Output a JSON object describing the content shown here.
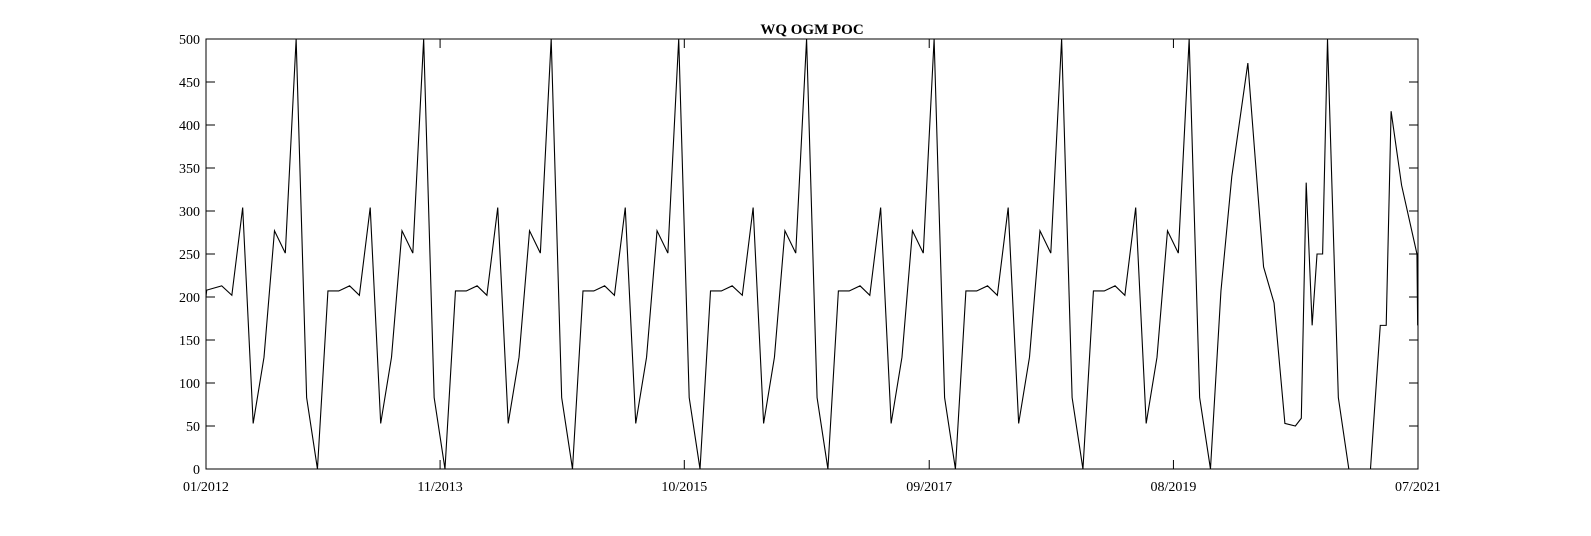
{
  "chart_data": {
    "type": "line",
    "title": "WQ OGM POC",
    "xlabel": "",
    "ylabel": "",
    "xlim": [
      "2012-01-01",
      "2021-07-01"
    ],
    "ylim": [
      0,
      500
    ],
    "yticks": [
      0,
      50,
      100,
      150,
      200,
      250,
      300,
      350,
      400,
      450,
      500
    ],
    "xticks": [
      "2012-01-01",
      "2013-11-01",
      "2015-10-01",
      "2017-09-01",
      "2019-08-01",
      "2021-07-01"
    ],
    "xtick_labels": [
      "01/2012",
      "11/2013",
      "10/2015",
      "09/2017",
      "08/2019",
      "07/2021"
    ],
    "grid": false,
    "series": [
      {
        "color": "#000000",
        "x": [
          "2012-01-01",
          "2012-01-03",
          "2012-02-15",
          "2012-03-15",
          "2012-04-15",
          "2012-05-15",
          "2012-06-15",
          "2012-07-15",
          "2012-08-15",
          "2012-09-15",
          "2012-10-15",
          "2012-11-15",
          "2012-12-15",
          "2013-01-15",
          "2013-02-15",
          "2013-03-15",
          "2013-04-15",
          "2013-05-15",
          "2013-06-15",
          "2013-07-15",
          "2013-08-15",
          "2013-09-15",
          "2013-10-15",
          "2013-11-15",
          "2013-12-15",
          "2014-01-15",
          "2014-02-15",
          "2014-03-15",
          "2014-04-15",
          "2014-05-15",
          "2014-06-15",
          "2014-07-15",
          "2014-08-15",
          "2014-09-15",
          "2014-10-15",
          "2014-11-15",
          "2014-12-15",
          "2015-01-15",
          "2015-02-15",
          "2015-03-15",
          "2015-04-15",
          "2015-05-15",
          "2015-06-15",
          "2015-07-15",
          "2015-08-15",
          "2015-09-15",
          "2015-10-15",
          "2015-11-15",
          "2015-12-15",
          "2016-01-15",
          "2016-02-15",
          "2016-03-15",
          "2016-04-15",
          "2016-05-15",
          "2016-06-15",
          "2016-07-15",
          "2016-08-15",
          "2016-09-15",
          "2016-10-15",
          "2016-11-15",
          "2016-12-15",
          "2017-01-15",
          "2017-02-15",
          "2017-03-15",
          "2017-04-15",
          "2017-05-15",
          "2017-06-15",
          "2017-07-15",
          "2017-08-15",
          "2017-09-15",
          "2017-10-15",
          "2017-11-15",
          "2017-12-15",
          "2018-01-15",
          "2018-02-15",
          "2018-03-15",
          "2018-04-15",
          "2018-05-15",
          "2018-06-15",
          "2018-07-15",
          "2018-08-15",
          "2018-09-15",
          "2018-10-15",
          "2018-11-15",
          "2018-12-15",
          "2019-01-15",
          "2019-02-15",
          "2019-03-15",
          "2019-04-15",
          "2019-05-15",
          "2019-06-15",
          "2019-07-15",
          "2019-08-15",
          "2019-09-15",
          "2019-10-15",
          "2019-11-15",
          "2019-12-15",
          "2020-01-15",
          "2020-03-01",
          "2020-04-15",
          "2020-05-15",
          "2020-06-15",
          "2020-07-15",
          "2020-08-01",
          "2020-08-15",
          "2020-09-01",
          "2020-09-15",
          "2020-10-01",
          "2020-10-15",
          "2020-11-15",
          "2020-12-15",
          "2021-01-15",
          "2021-02-15",
          "2021-03-15",
          "2021-04-01",
          "2021-04-15",
          "2021-05-15",
          "2021-06-28",
          "2021-06-30"
        ],
        "y": [
          200,
          208,
          213,
          202,
          304,
          53,
          130,
          277,
          251,
          500,
          83,
          0,
          207,
          207,
          213,
          202,
          304,
          53,
          130,
          277,
          251,
          500,
          83,
          0,
          207,
          207,
          213,
          202,
          304,
          53,
          130,
          277,
          251,
          500,
          83,
          0,
          207,
          207,
          213,
          202,
          304,
          53,
          130,
          277,
          251,
          500,
          83,
          0,
          207,
          207,
          213,
          202,
          304,
          53,
          130,
          277,
          251,
          500,
          83,
          0,
          207,
          207,
          213,
          202,
          304,
          53,
          130,
          277,
          251,
          500,
          83,
          0,
          207,
          207,
          213,
          202,
          304,
          53,
          130,
          277,
          251,
          500,
          83,
          0,
          207,
          207,
          213,
          202,
          304,
          53,
          130,
          277,
          251,
          500,
          83,
          0,
          207,
          340,
          472,
          235,
          193,
          53,
          50,
          59,
          333,
          167,
          250,
          250,
          500,
          83,
          0,
          0,
          0,
          167,
          167,
          416,
          330,
          250,
          167
        ]
      }
    ]
  }
}
